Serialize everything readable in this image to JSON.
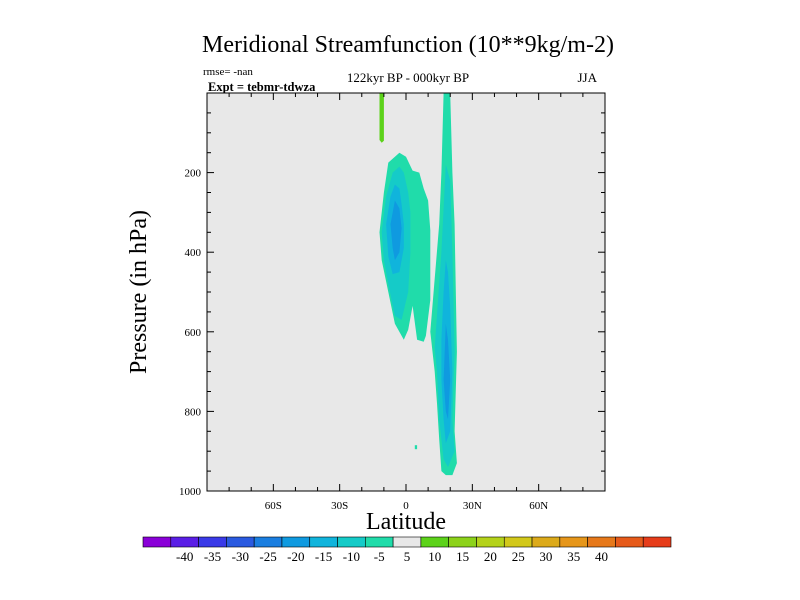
{
  "chart_data": {
    "type": "contour",
    "title": "Meridional Streamfunction (10**9kg/m-2)",
    "rmse": "rmse= -nan",
    "expt": "Expt = tebmr-tdwza",
    "period": "122kyr BP - 000kyr BP",
    "season": "JJA",
    "xlabel": "Latitude",
    "ylabel": "Pressure (in hPa)",
    "xlim": [
      -90,
      90
    ],
    "ylim": [
      1000,
      0
    ],
    "xticks": [
      {
        "value": -60,
        "label": "60S"
      },
      {
        "value": -30,
        "label": "30S"
      },
      {
        "value": 0,
        "label": "0"
      },
      {
        "value": 30,
        "label": "30N"
      },
      {
        "value": 60,
        "label": "60N"
      }
    ],
    "yticks": [
      {
        "value": 200,
        "label": "200"
      },
      {
        "value": 400,
        "label": "400"
      },
      {
        "value": 600,
        "label": "600"
      },
      {
        "value": 800,
        "label": "800"
      },
      {
        "value": 1000,
        "label": "1000"
      }
    ],
    "colorbar": {
      "labels": [
        "-40",
        "-35",
        "-30",
        "-25",
        "-20",
        "-15",
        "-10",
        "-5",
        "5",
        "10",
        "15",
        "20",
        "25",
        "30",
        "35",
        "40"
      ],
      "colors": [
        "#8a00d8",
        "#5a1ee6",
        "#3a3ae8",
        "#2a5ae0",
        "#1a7ee0",
        "#0f9ae0",
        "#10b4dc",
        "#15cbc8",
        "#20dcaa",
        "#e8e8e8",
        "#5cd21a",
        "#8cd21a",
        "#b4d21a",
        "#d2c81a",
        "#dcaa1a",
        "#e6961a",
        "#e6781a",
        "#e65a1a",
        "#e63c1a"
      ]
    },
    "regions": [
      {
        "level": -5,
        "color": "#20dcaa",
        "points": [
          [
            -12,
            350
          ],
          [
            -10,
            250
          ],
          [
            -8,
            175
          ],
          [
            -3,
            150
          ],
          [
            0,
            160
          ],
          [
            3,
            195
          ],
          [
            6,
            200
          ],
          [
            8,
            240
          ],
          [
            10,
            270
          ],
          [
            11,
            345
          ],
          [
            11,
            520
          ],
          [
            9,
            610
          ],
          [
            8,
            625
          ],
          [
            5,
            620
          ],
          [
            3,
            535
          ],
          [
            1,
            595
          ],
          [
            -1,
            620
          ],
          [
            -5,
            580
          ],
          [
            -8,
            500
          ],
          [
            -11,
            420
          ]
        ]
      },
      {
        "level": -10,
        "color": "#15cbc8",
        "points": [
          [
            -11,
            350
          ],
          [
            -9,
            260
          ],
          [
            -6,
            200
          ],
          [
            -3,
            185
          ],
          [
            -1,
            200
          ],
          [
            1,
            250
          ],
          [
            2,
            300
          ],
          [
            2,
            400
          ],
          [
            1,
            500
          ],
          [
            -2,
            570
          ],
          [
            -5,
            560
          ],
          [
            -8,
            480
          ],
          [
            -10,
            420
          ]
        ]
      },
      {
        "level": -15,
        "color": "#10b4dc",
        "points": [
          [
            -9,
            330
          ],
          [
            -7,
            260
          ],
          [
            -5,
            230
          ],
          [
            -3,
            240
          ],
          [
            -2,
            280
          ],
          [
            -1,
            330
          ],
          [
            -1,
            390
          ],
          [
            -3,
            450
          ],
          [
            -6,
            455
          ],
          [
            -8,
            410
          ]
        ]
      },
      {
        "level": -20,
        "color": "#0f9ae0",
        "points": [
          [
            -7,
            330
          ],
          [
            -5,
            270
          ],
          [
            -3,
            290
          ],
          [
            -2,
            340
          ],
          [
            -3,
            400
          ],
          [
            -5,
            420
          ],
          [
            -6,
            390
          ]
        ]
      },
      {
        "level": -5,
        "color": "#20dcaa",
        "points": [
          [
            15,
            330
          ],
          [
            16,
            200
          ],
          [
            17,
            0
          ],
          [
            20,
            0
          ],
          [
            21,
            200
          ],
          [
            22,
            330
          ],
          [
            23,
            650
          ],
          [
            22,
            850
          ],
          [
            23,
            930
          ],
          [
            21,
            960
          ],
          [
            18,
            960
          ],
          [
            16,
            950
          ],
          [
            15,
            870
          ],
          [
            14,
            780
          ],
          [
            13,
            700
          ],
          [
            12,
            650
          ],
          [
            11,
            600
          ]
        ]
      },
      {
        "level": -10,
        "color": "#15cbc8",
        "points": [
          [
            16,
            400
          ],
          [
            18,
            180
          ],
          [
            20,
            220
          ],
          [
            21,
            400
          ],
          [
            22,
            650
          ],
          [
            21,
            820
          ],
          [
            22,
            900
          ],
          [
            19,
            940
          ],
          [
            17,
            920
          ],
          [
            15,
            820
          ],
          [
            14,
            700
          ],
          [
            13,
            640
          ]
        ]
      },
      {
        "level": -15,
        "color": "#10b4dc",
        "points": [
          [
            17,
            500
          ],
          [
            18,
            420
          ],
          [
            19,
            450
          ],
          [
            20,
            540
          ],
          [
            21,
            700
          ],
          [
            20,
            850
          ],
          [
            18,
            880
          ],
          [
            17,
            820
          ],
          [
            16,
            720
          ],
          [
            16,
            620
          ]
        ]
      },
      {
        "level": -20,
        "color": "#0f9ae0",
        "points": [
          [
            18,
            580
          ],
          [
            19,
            620
          ],
          [
            20,
            720
          ],
          [
            19,
            820
          ],
          [
            18,
            800
          ],
          [
            17,
            720
          ]
        ]
      },
      {
        "level": 5,
        "color": "#5cd21a",
        "points": [
          [
            -12,
            0
          ],
          [
            -10,
            0
          ],
          [
            -10,
            120
          ],
          [
            -11,
            125
          ],
          [
            -12,
            118
          ]
        ]
      },
      {
        "level": -5,
        "color": "#20dcaa",
        "points": [
          [
            4,
            885
          ],
          [
            5,
            885
          ],
          [
            5,
            895
          ],
          [
            4,
            895
          ]
        ]
      }
    ]
  }
}
